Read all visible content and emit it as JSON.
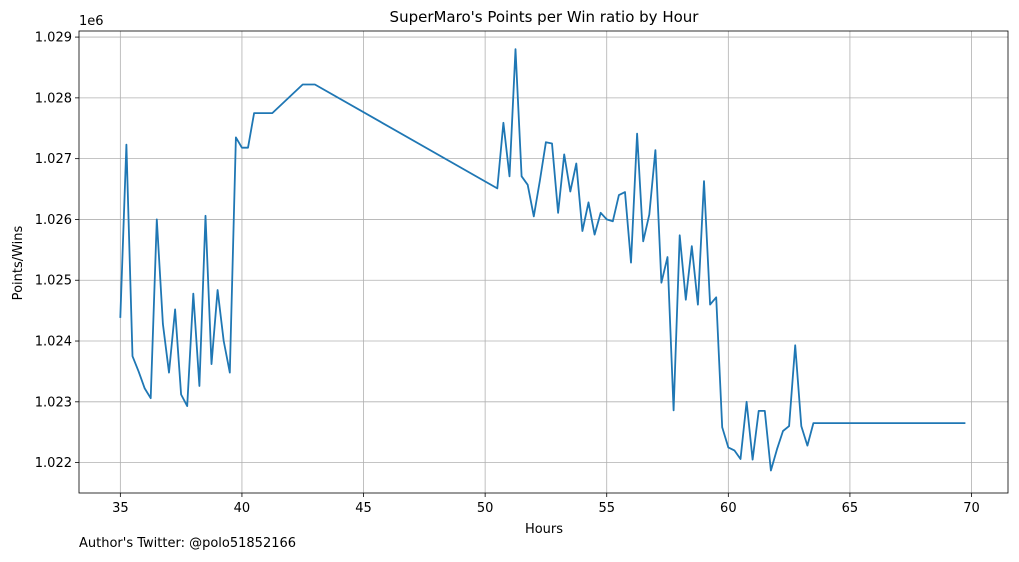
{
  "chart_data": {
    "type": "line",
    "title": "SuperMaro's Points per Win ratio by Hour",
    "xlabel": "Hours",
    "ylabel": "Points/Wins",
    "y_offset_label": "1e6",
    "xlim": [
      33.3,
      71.5
    ],
    "ylim": [
      1021.5,
      1029.1
    ],
    "y_scale": 1000,
    "x_ticks": [
      35,
      40,
      45,
      50,
      55,
      60,
      65,
      70
    ],
    "y_ticks": [
      1022,
      1023,
      1024,
      1025,
      1026,
      1027,
      1028,
      1029
    ],
    "y_tick_labels": [
      "1.022",
      "1.023",
      "1.024",
      "1.025",
      "1.026",
      "1.027",
      "1.028",
      "1.029"
    ],
    "grid": true,
    "series": [
      {
        "color": "#1f77b4",
        "x": [
          35.0,
          35.25,
          35.5,
          35.75,
          36.0,
          36.25,
          36.5,
          36.75,
          37.0,
          37.25,
          37.5,
          37.75,
          38.0,
          38.25,
          38.5,
          38.75,
          39.0,
          39.25,
          39.5,
          39.75,
          40.0,
          40.25,
          40.5,
          41.25,
          42.5,
          43.0,
          50.5,
          50.75,
          51.0,
          51.25,
          51.5,
          51.75,
          52.0,
          52.25,
          52.5,
          52.75,
          53.0,
          53.25,
          53.5,
          53.75,
          54.0,
          54.25,
          54.5,
          54.75,
          55.0,
          55.25,
          55.5,
          55.75,
          56.0,
          56.25,
          56.5,
          56.75,
          57.0,
          57.25,
          57.5,
          57.75,
          58.0,
          58.25,
          58.5,
          58.75,
          59.0,
          59.25,
          59.5,
          59.75,
          60.0,
          60.25,
          60.5,
          60.75,
          61.0,
          61.25,
          61.5,
          61.75,
          62.0,
          62.25,
          62.5,
          62.75,
          63.0,
          63.25,
          63.5,
          69.75
        ],
        "y": [
          1024.38,
          1027.23,
          1023.75,
          1023.5,
          1023.22,
          1023.06,
          1026.0,
          1024.28,
          1023.48,
          1024.52,
          1023.12,
          1022.93,
          1024.78,
          1023.26,
          1026.06,
          1023.62,
          1024.84,
          1024.0,
          1023.48,
          1027.35,
          1027.18,
          1027.18,
          1027.75,
          1027.75,
          1028.22,
          1028.22,
          1026.51,
          1027.59,
          1026.71,
          1028.8,
          1026.71,
          1026.57,
          1026.05,
          1026.64,
          1027.27,
          1027.25,
          1026.11,
          1027.07,
          1026.46,
          1026.92,
          1025.81,
          1026.28,
          1025.75,
          1026.11,
          1026.0,
          1025.97,
          1026.4,
          1026.45,
          1025.29,
          1027.41,
          1025.64,
          1026.08,
          1027.14,
          1024.96,
          1025.38,
          1022.86,
          1025.74,
          1024.68,
          1025.56,
          1024.6,
          1026.63,
          1024.6,
          1024.72,
          1022.58,
          1022.25,
          1022.2,
          1022.06,
          1023.0,
          1022.05,
          1022.85,
          1022.85,
          1021.87,
          1022.22,
          1022.52,
          1022.6,
          1023.93,
          1022.6,
          1022.28,
          1022.65,
          1022.65
        ]
      }
    ]
  },
  "footer": {
    "credit": "Author's Twitter: @polo51852166"
  }
}
